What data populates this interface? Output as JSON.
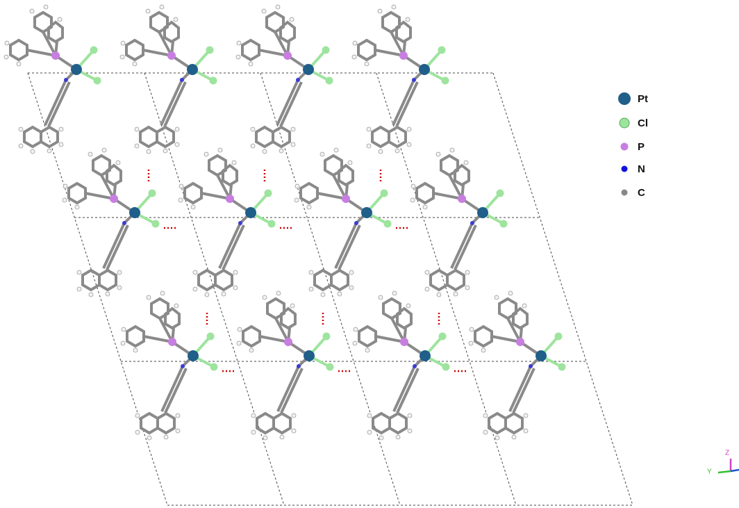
{
  "legend": [
    "Pt",
    "Cl",
    "P",
    "N",
    "C"
  ],
  "axes": {
    "z": "Z",
    "y": "Y"
  }
}
